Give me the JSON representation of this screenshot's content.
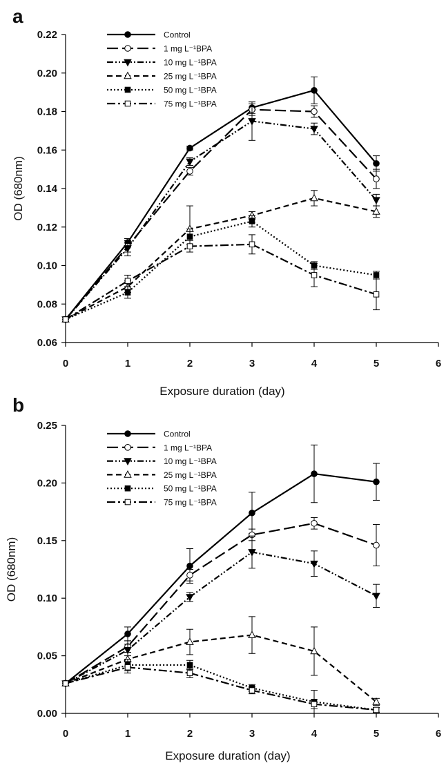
{
  "figure": {
    "panels": [
      "a",
      "b"
    ],
    "legend_labels": [
      "Control",
      "1 mg L⁻¹BPA",
      "10 mg L⁻¹BPA",
      "25 mg L⁻¹BPA",
      "50 mg L⁻¹BPA",
      "75 mg L⁻¹BPA"
    ]
  },
  "chart_data": [
    {
      "type": "line",
      "panel": "a",
      "xlabel": "Exposure duration (day)",
      "ylabel": "OD (680nm)",
      "xlim": [
        0,
        6
      ],
      "ylim": [
        0.06,
        0.22
      ],
      "xticks": [
        "0",
        "1",
        "2",
        "3",
        "4",
        "5",
        "6"
      ],
      "yticks": [
        "0.06",
        "0.08",
        "0.10",
        "0.12",
        "0.14",
        "0.16",
        "0.18",
        "0.20",
        "0.22"
      ],
      "legend_position": "top-left",
      "x": [
        0,
        1,
        2,
        3,
        4,
        5
      ],
      "series": [
        {
          "name": "Control",
          "marker": "filled-circle",
          "dash": "solid",
          "values": [
            0.072,
            0.112,
            0.161,
            0.182,
            0.191,
            0.153
          ],
          "err": [
            0,
            0.002,
            0.001,
            0.003,
            0.007,
            0.004
          ]
        },
        {
          "name": "1 mg L⁻¹BPA",
          "marker": "open-circle",
          "dash": "long-dash",
          "values": [
            0.072,
            0.11,
            0.149,
            0.181,
            0.18,
            0.145
          ],
          "err": [
            0,
            0.003,
            0.002,
            0.003,
            0.003,
            0.005
          ]
        },
        {
          "name": "10 mg L⁻¹BPA",
          "marker": "filled-triangle-down",
          "dash": "dash-dot-dot",
          "values": [
            0.072,
            0.109,
            0.154,
            0.175,
            0.171,
            0.134
          ],
          "err": [
            0,
            0.004,
            0.002,
            0.01,
            0.003,
            0.003
          ]
        },
        {
          "name": "25 mg L⁻¹BPA",
          "marker": "open-triangle-up",
          "dash": "dash",
          "values": [
            0.072,
            0.089,
            0.119,
            0.126,
            0.135,
            0.128
          ],
          "err": [
            0,
            0.003,
            0.012,
            0.002,
            0.004,
            0.003
          ]
        },
        {
          "name": "50 mg L⁻¹BPA",
          "marker": "filled-square",
          "dash": "dot",
          "values": [
            0.072,
            0.086,
            0.115,
            0.123,
            0.1,
            0.095
          ],
          "err": [
            0,
            0.003,
            0.004,
            0.003,
            0.002,
            0.002
          ]
        },
        {
          "name": "75 mg L⁻¹BPA",
          "marker": "open-square",
          "dash": "dash-dot",
          "values": [
            0.072,
            0.092,
            0.11,
            0.111,
            0.095,
            0.085
          ],
          "err": [
            0,
            0.003,
            0.003,
            0.005,
            0.006,
            0.008
          ]
        }
      ]
    },
    {
      "type": "line",
      "panel": "b",
      "xlabel": "Exposure duration (day)",
      "ylabel": "OD (680nm)",
      "xlim": [
        0,
        6
      ],
      "ylim": [
        0.0,
        0.25
      ],
      "xticks": [
        "0",
        "1",
        "2",
        "3",
        "4",
        "5",
        "6"
      ],
      "yticks": [
        "0.00",
        "0.05",
        "0.10",
        "0.15",
        "0.20",
        "0.25"
      ],
      "legend_position": "top-left",
      "x": [
        0,
        1,
        2,
        3,
        4,
        5
      ],
      "series": [
        {
          "name": "Control",
          "marker": "filled-circle",
          "dash": "solid",
          "values": [
            0.026,
            0.069,
            0.128,
            0.174,
            0.208,
            0.201
          ],
          "err": [
            0,
            0.006,
            0.015,
            0.018,
            0.025,
            0.016
          ]
        },
        {
          "name": "1 mg L⁻¹BPA",
          "marker": "open-circle",
          "dash": "long-dash",
          "values": [
            0.026,
            0.058,
            0.12,
            0.155,
            0.165,
            0.146
          ],
          "err": [
            0,
            0.005,
            0.005,
            0.005,
            0.005,
            0.018
          ]
        },
        {
          "name": "10 mg L⁻¹BPA",
          "marker": "filled-triangle-down",
          "dash": "dash-dot-dot",
          "values": [
            0.026,
            0.055,
            0.101,
            0.14,
            0.13,
            0.102
          ],
          "err": [
            0,
            0.005,
            0.004,
            0.014,
            0.011,
            0.01
          ]
        },
        {
          "name": "25 mg L⁻¹BPA",
          "marker": "open-triangle-up",
          "dash": "dash",
          "values": [
            0.026,
            0.047,
            0.062,
            0.068,
            0.054,
            0.01
          ],
          "err": [
            0,
            0.006,
            0.011,
            0.016,
            0.021,
            0.003
          ]
        },
        {
          "name": "50 mg L⁻¹BPA",
          "marker": "filled-square",
          "dash": "dot",
          "values": [
            0.026,
            0.042,
            0.042,
            0.022,
            0.01,
            0.003
          ],
          "err": [
            0,
            0.005,
            0.004,
            0.003,
            0.01,
            0.002
          ]
        },
        {
          "name": "75 mg L⁻¹BPA",
          "marker": "open-square",
          "dash": "dash-dot",
          "values": [
            0.026,
            0.04,
            0.035,
            0.02,
            0.008,
            0.003
          ],
          "err": [
            0,
            0.005,
            0.004,
            0.003,
            0.004,
            0.002
          ]
        }
      ]
    }
  ]
}
